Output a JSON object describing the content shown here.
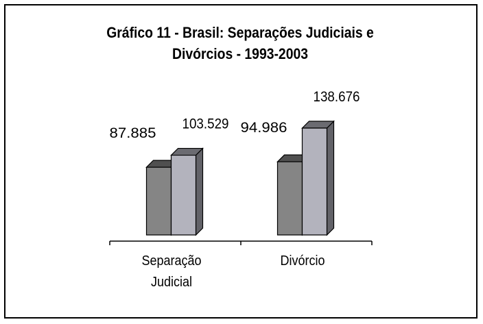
{
  "chart_data": {
    "type": "bar3d",
    "title": "Gráfico 11 - Brasil: Separações Judiciais e Divórcios - 1993-2003",
    "categories": [
      "Separação Judicial",
      "Divórcio"
    ],
    "series": [
      {
        "color": "#858585",
        "values": [
          87885,
          94986
        ],
        "value_labels": [
          "87.885",
          "94.986"
        ]
      },
      {
        "color": "#b3b3bd",
        "values": [
          103529,
          138676
        ],
        "value_labels": [
          "103.529",
          "138.676"
        ]
      }
    ],
    "grid": false
  }
}
